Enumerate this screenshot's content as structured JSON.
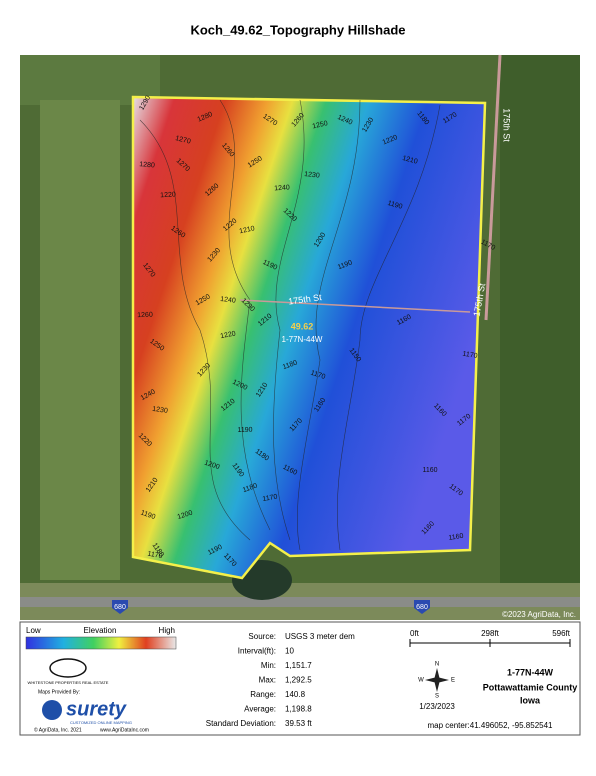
{
  "title": "Koch_49.62_Topography Hillshade",
  "map": {
    "contour_labels": [
      "1290",
      "1280",
      "1270",
      "1260",
      "1250",
      "1280",
      "1270",
      "1260",
      "1240",
      "1270",
      "1260",
      "1250",
      "1240",
      "1230",
      "1220",
      "1210",
      "1180",
      "1170",
      "1230",
      "1220",
      "1220",
      "1220",
      "1260",
      "1230",
      "1210",
      "1190",
      "1200",
      "1190",
      "1190",
      "1270",
      "1250",
      "1240",
      "1230",
      "1210",
      "1260",
      "1250",
      "1230",
      "1220",
      "1200",
      "1210",
      "1180",
      "1170",
      "1150",
      "1240",
      "1230",
      "1220",
      "1210",
      "1190",
      "1180",
      "1170",
      "1170",
      "1160",
      "1160",
      "1180",
      "1200",
      "1190",
      "1160",
      "1170",
      "1160",
      "1170",
      "1160",
      "1170",
      "1160",
      "1160",
      "1170",
      "1210",
      "1200",
      "1190",
      "1180",
      "1190",
      "1170",
      "1170"
    ],
    "roads": [
      "175th St",
      "175th St",
      "175th St"
    ],
    "field_label": "49.62",
    "section_label": "1-77N-44W",
    "highway_shields": [
      "680",
      "680"
    ],
    "copyright": "©2023 AgriData, Inc."
  },
  "legend": {
    "low": "Low",
    "title": "Elevation",
    "high": "High"
  },
  "stats": [
    [
      "Source:",
      "USGS 3 meter dem"
    ],
    [
      "Interval(ft):",
      "10"
    ],
    [
      "Min:",
      "1,151.7"
    ],
    [
      "Max:",
      "1,292.5"
    ],
    [
      "Range:",
      "140.8"
    ],
    [
      "Average:",
      "1,198.8"
    ],
    [
      "Standard Deviation:",
      "39.53 ft"
    ]
  ],
  "scale": [
    "0ft",
    "298ft",
    "596ft"
  ],
  "compass": [
    "N",
    "E",
    "S",
    "W"
  ],
  "location": [
    "1-77N-44W",
    "Pottawattamie County",
    "Iowa"
  ],
  "date": "1/23/2023",
  "map_center": "map center:41.496052, -95.852541",
  "branding": {
    "realtor": "WHITESTONE PROPERTIES REAL ESTATE",
    "provided_by": "Maps Provided By:",
    "brand": "surety",
    "tagline": "CUSTOMIZED ONLINE MAPPING",
    "copyright": "© AgriData, Inc. 2021",
    "website": "www.AgriDataInc.com"
  }
}
